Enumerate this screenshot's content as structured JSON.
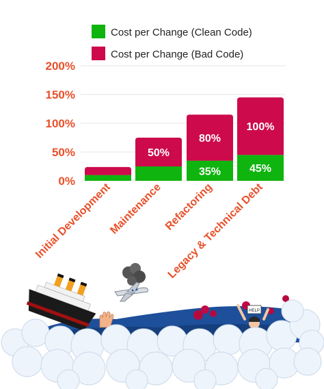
{
  "chart_data": {
    "type": "bar",
    "stacked": true,
    "categories": [
      "Initial Development",
      "Maintenance",
      "Refactoring",
      "Legacy & Technical Debt"
    ],
    "series": [
      {
        "name": "Cost per Change (Clean Code)",
        "color": "#0fb40f",
        "values": [
          10,
          25,
          35,
          45
        ],
        "labels": [
          "",
          "",
          "35%",
          "45%"
        ]
      },
      {
        "name": "Cost per Change (Bad Code)",
        "color": "#cc0a4c",
        "values": [
          14,
          50,
          80,
          100
        ],
        "labels": [
          "",
          "50%",
          "80%",
          "100%"
        ]
      }
    ],
    "yticks": [
      "0%",
      "50%",
      "100%",
      "150%",
      "200%"
    ],
    "ylim": [
      0,
      200
    ],
    "grid": true,
    "legend": "top-right",
    "tick_color": "#e8502a"
  },
  "illustration": {
    "elements": [
      "sinking-ship-icon",
      "crashing-plane-icon",
      "drowning-hand-icon",
      "drowning-person-icon",
      "help-sign-icon",
      "clouds",
      "sea-waves"
    ],
    "help_sign_text": "HELP"
  }
}
